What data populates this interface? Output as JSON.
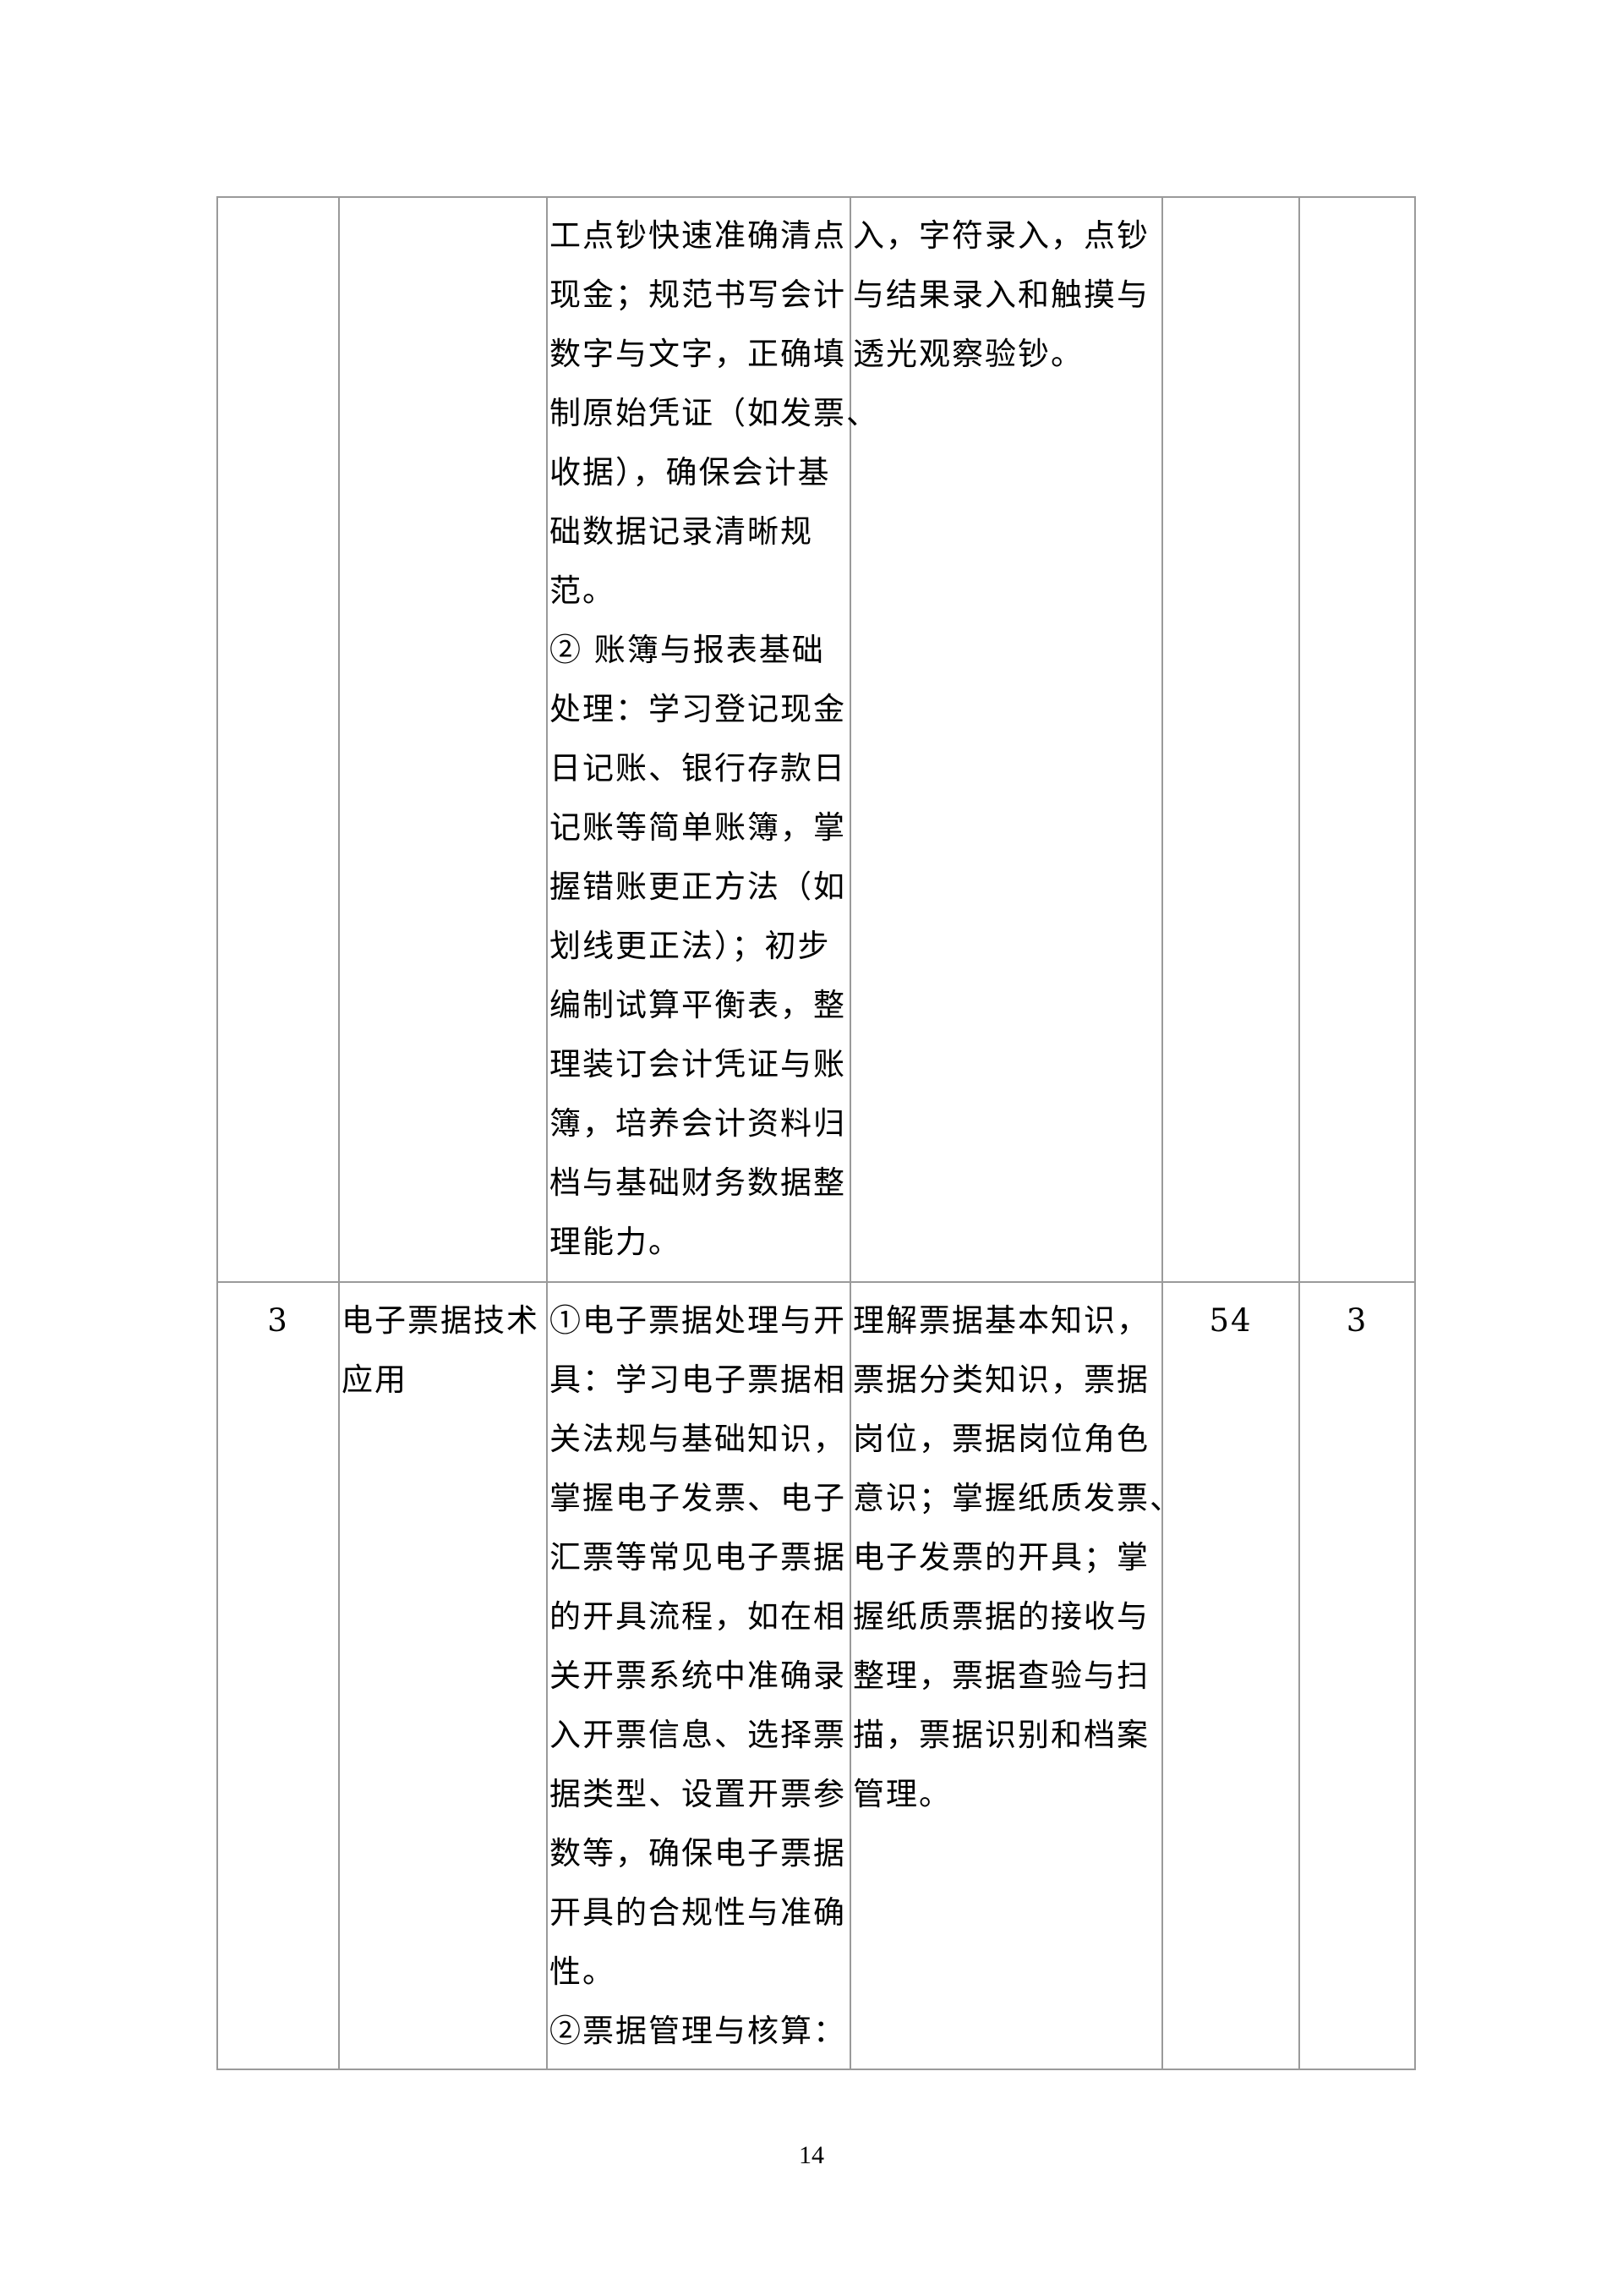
{
  "table": {
    "rows": [
      {
        "index": "",
        "course": [],
        "content": [
          "工点钞快速准确清点",
          "现金；规范书写会计",
          "数字与文字，正确填",
          "制原始凭证（如发票、",
          "收据），确保会计基",
          "础数据记录清晰规",
          "范。",
          "② 账簿与报表基础",
          "处理：学习登记现金",
          "日记账、银行存款日",
          "记账等简单账簿，掌",
          "握错账更正方法（如",
          "划线更正法）；初步",
          "编制试算平衡表，整",
          "理装订会计凭证与账",
          "簿，培养会计资料归",
          "档与基础财务数据整",
          "理能力。"
        ],
        "requirements": [
          "入，字符录入，点钞",
          "与结果录入和触摸与",
          "透光观察验钞。"
        ],
        "hours": "",
        "credits": ""
      },
      {
        "index": "3",
        "course": [
          "电子票据技术",
          "应用"
        ],
        "content": [
          "①电子票据处理与开",
          "具：学习电子票据相",
          "关法规与基础知识，",
          "掌握电子发票、电子",
          "汇票等常见电子票据",
          "的开具流程，如在相",
          "关开票系统中准确录",
          "入开票信息、选择票",
          "据类型、设置开票参",
          "数等，确保电子票据",
          "开具的合规性与准确",
          "性。",
          "②票据管理与核算："
        ],
        "requirements": [
          "理解票据基本知识，",
          "票据分类知识，票据",
          "岗位，票据岗位角色",
          "意识；掌握纸质发票、",
          "电子发票的开具；掌",
          "握纸质票据的接收与",
          "整理，票据查验与扫",
          "描，票据识别和档案",
          "管理。"
        ],
        "hours": "54",
        "credits": "3"
      }
    ]
  },
  "page_number": "14"
}
